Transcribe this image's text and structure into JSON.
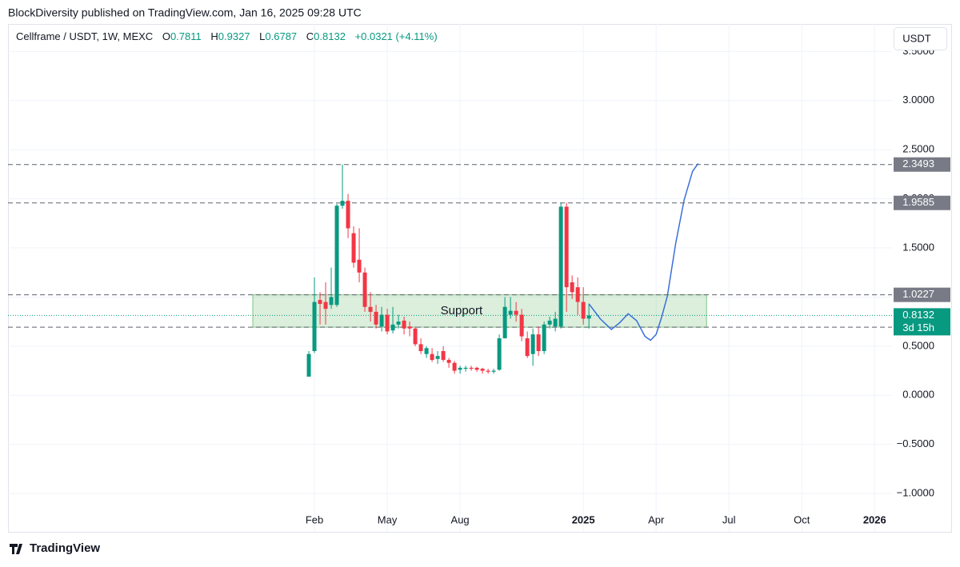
{
  "header": {
    "attribution": "BlockDiversity published on TradingView.com, Jan 16, 2025 09:28 UTC",
    "footer": "TradingView",
    "currency": "USDT"
  },
  "legend": {
    "symbol": "Cellframe / USDT, 1W, MEXC",
    "o": "O",
    "h": "H",
    "l": "L",
    "c": "C",
    "change": "+0.0321 (+4.11%)"
  },
  "chart_data": {
    "type": "candlestick",
    "up_color": "#089981",
    "down_color": "#f23645",
    "grid": true,
    "x": [
      0,
      1,
      2,
      3,
      4,
      5,
      6,
      7,
      8,
      9,
      10,
      11,
      12,
      13,
      14,
      15,
      16,
      17,
      18,
      19,
      20,
      21,
      22,
      23,
      24,
      25,
      26,
      27,
      28,
      29,
      30,
      31,
      32,
      33,
      34,
      35,
      36,
      37,
      38,
      39,
      40,
      41,
      42,
      43,
      44,
      45,
      46,
      47,
      48,
      49,
      50
    ],
    "open": [
      0.19,
      0.45,
      0.97,
      0.95,
      0.92,
      0.92,
      1.93,
      1.98,
      1.65,
      1.38,
      1.25,
      0.9,
      0.85,
      0.7,
      0.82,
      0.66,
      0.72,
      0.76,
      0.7,
      0.68,
      0.52,
      0.42,
      0.42,
      0.37,
      0.45,
      0.36,
      0.33,
      0.26,
      0.27,
      0.28,
      0.28,
      0.27,
      0.25,
      0.24,
      0.26,
      0.58,
      0.82,
      0.86,
      0.82,
      0.58,
      0.42,
      0.62,
      0.45,
      0.72,
      0.7,
      0.7,
      1.92,
      1.15,
      1.1,
      0.95,
      0.7811
    ],
    "high": [
      0.45,
      1.2,
      1.05,
      1.15,
      1.3,
      1.95,
      2.35,
      2.05,
      1.72,
      1.7,
      1.3,
      1.05,
      0.92,
      0.9,
      0.88,
      0.9,
      0.82,
      0.8,
      0.75,
      0.7,
      0.58,
      0.5,
      0.48,
      0.45,
      0.5,
      0.38,
      0.35,
      0.3,
      0.3,
      0.3,
      0.29,
      0.28,
      0.27,
      0.27,
      0.62,
      1.0,
      1.0,
      0.95,
      0.88,
      0.65,
      0.68,
      0.7,
      0.75,
      0.8,
      0.85,
      1.96,
      1.96,
      1.22,
      1.2,
      1.1,
      0.9327
    ],
    "low": [
      0.19,
      0.43,
      0.72,
      0.72,
      0.88,
      0.9,
      1.9,
      1.6,
      1.3,
      1.15,
      0.85,
      0.75,
      0.68,
      0.65,
      0.62,
      0.63,
      0.68,
      0.62,
      0.6,
      0.5,
      0.42,
      0.38,
      0.34,
      0.32,
      0.34,
      0.28,
      0.22,
      0.22,
      0.24,
      0.25,
      0.24,
      0.22,
      0.22,
      0.22,
      0.25,
      0.58,
      0.78,
      0.75,
      0.55,
      0.38,
      0.3,
      0.4,
      0.42,
      0.68,
      0.65,
      0.68,
      0.85,
      0.98,
      0.82,
      0.72,
      0.6787
    ],
    "close": [
      0.42,
      0.95,
      0.93,
      0.88,
      1.0,
      1.93,
      1.98,
      1.7,
      1.35,
      1.25,
      0.9,
      0.85,
      0.72,
      0.82,
      0.65,
      0.72,
      0.75,
      0.68,
      0.68,
      0.52,
      0.45,
      0.48,
      0.36,
      0.4,
      0.36,
      0.33,
      0.25,
      0.28,
      0.28,
      0.27,
      0.26,
      0.25,
      0.24,
      0.25,
      0.58,
      0.9,
      0.86,
      0.82,
      0.6,
      0.4,
      0.62,
      0.45,
      0.72,
      0.76,
      0.78,
      1.92,
      1.1,
      1.05,
      0.95,
      0.78,
      0.8132
    ],
    "xlim": [
      -53.7,
      104.1
    ],
    "xticks": [
      {
        "value": 1,
        "label": "Feb"
      },
      {
        "value": 14,
        "label": "May"
      },
      {
        "value": 27,
        "label": "Aug"
      },
      {
        "value": 49,
        "label": "2025"
      },
      {
        "value": 62,
        "label": "Apr"
      },
      {
        "value": 75,
        "label": "Jul"
      },
      {
        "value": 88,
        "label": "Oct"
      },
      {
        "value": 101,
        "label": "2026"
      }
    ],
    "ylim": [
      -1.39,
      3.78
    ],
    "yticks": [
      {
        "value": 3.5,
        "label": "3.5000"
      },
      {
        "value": 3,
        "label": "3.0000"
      },
      {
        "value": 2.5,
        "label": "2.5000"
      },
      {
        "value": 2,
        "label": "2.0000"
      },
      {
        "value": 1.5,
        "label": "1.5000"
      },
      {
        "value": 1,
        "label": "1.0000"
      },
      {
        "value": 0.5,
        "label": "0.5000"
      },
      {
        "value": 0,
        "label": "0.0000"
      },
      {
        "value": -0.5,
        "label": "−0.5000"
      },
      {
        "value": -1,
        "label": "−1.0000"
      }
    ],
    "levels": [
      2.3493,
      1.9585,
      1.0227,
      0.6936
    ],
    "countdown": "3d 15h",
    "zone": {
      "label": "Support",
      "x": [
        -10,
        71
      ],
      "values": [
        0.6936,
        1.0227
      ]
    },
    "projection": {
      "color": "#3a6fd8",
      "x": [
        50,
        52,
        54,
        55.5,
        57,
        58.5,
        60,
        61,
        62,
        63,
        64,
        65.5,
        67,
        68.5,
        69.5
      ],
      "values": [
        0.93,
        0.78,
        0.67,
        0.74,
        0.83,
        0.76,
        0.6,
        0.56,
        0.62,
        0.8,
        1.01,
        1.55,
        1.99,
        2.28,
        2.36
      ]
    }
  }
}
